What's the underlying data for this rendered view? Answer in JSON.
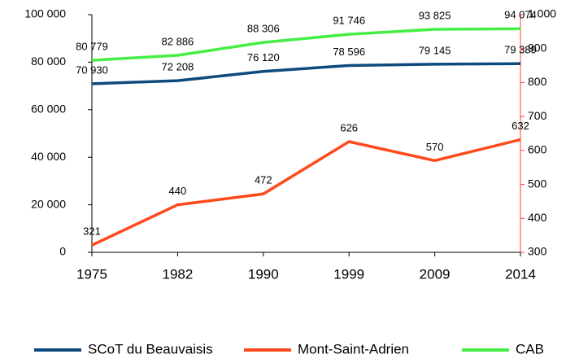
{
  "chart_data": {
    "type": "line",
    "categories": [
      "1975",
      "1982",
      "1990",
      "1999",
      "2009",
      "2014"
    ],
    "series": [
      {
        "name": "SCoT du Beauvaisis",
        "color": "#0e4a7e",
        "values": [
          70930,
          72208,
          76120,
          78596,
          79145,
          79389
        ],
        "value_labels": [
          "70 930",
          "72 208",
          "76 120",
          "78 596",
          "79 145",
          "79 389"
        ]
      },
      {
        "name": "Mont-Saint-Adrien",
        "color": "#ff4a1c",
        "axis": "y2",
        "values": [
          321,
          440,
          472,
          626,
          570,
          632
        ]
      },
      {
        "name": "CAB",
        "color": "#44ee44",
        "values": [
          80779,
          82886,
          88306,
          91746,
          93825,
          94074
        ],
        "value_labels": [
          "80 779",
          "82 886",
          "88 306",
          "91 746",
          "93 825",
          "94 074"
        ]
      }
    ],
    "ylim": [
      0,
      100000
    ],
    "yticks": [
      0,
      {
        "value": 20000,
        "label": "20 000"
      },
      {
        "value": 40000,
        "label": "40 000"
      },
      {
        "value": 60000,
        "label": "60 000"
      },
      {
        "value": 80000,
        "label": "80 000"
      },
      {
        "value": 100000,
        "label": "100 000"
      }
    ],
    "y2lim": [
      300,
      1000
    ],
    "y2ticks": [
      300,
      400,
      500,
      600,
      700,
      800,
      900,
      {
        "value": 1000,
        "label": "1 000"
      }
    ],
    "y2color": "#ff4040",
    "grid": false
  }
}
